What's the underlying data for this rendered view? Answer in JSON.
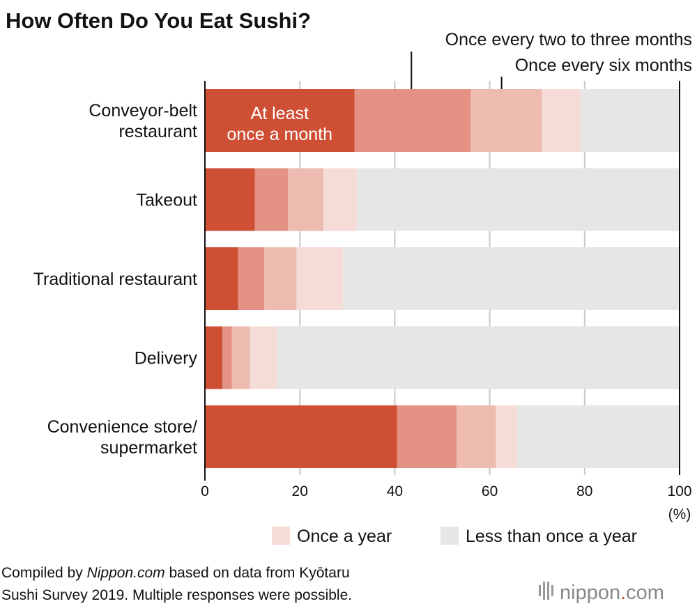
{
  "chart_data": {
    "type": "bar",
    "orientation": "horizontal",
    "stacked": true,
    "title": "How Often Do You Eat Sushi?",
    "unit_label": "(%)",
    "xlim": [
      0,
      100
    ],
    "x_ticks": [
      "0",
      "20",
      "40",
      "60",
      "80",
      "100"
    ],
    "categories": [
      "Conveyor-belt restaurant",
      "Takeout",
      "Traditional restaurant",
      "Delivery",
      "Convenience store/ supermarket"
    ],
    "category_lines": [
      [
        "Conveyor-belt",
        "restaurant"
      ],
      [
        "Takeout"
      ],
      [
        "Traditional restaurant"
      ],
      [
        "Delivery"
      ],
      [
        "Convenience store/",
        "supermarket"
      ]
    ],
    "series": [
      {
        "name": "At least once a month",
        "color": "#cf4f35",
        "values": [
          31.5,
          10.5,
          7.0,
          3.7,
          40.5
        ]
      },
      {
        "name": "Once every two to three months",
        "color": "#e39284",
        "values": [
          24.5,
          7.0,
          5.5,
          2.0,
          12.5
        ]
      },
      {
        "name": "Once every six months",
        "color": "#edbbb0",
        "values": [
          15.0,
          7.5,
          6.8,
          3.8,
          8.3
        ]
      },
      {
        "name": "Once a year",
        "color": "#f6dcd6",
        "values": [
          8.2,
          7.0,
          9.8,
          5.7,
          4.5
        ]
      },
      {
        "name": "Less than once a year",
        "color": "#e6e6e6",
        "values": [
          20.8,
          68.0,
          70.9,
          84.8,
          34.2
        ]
      }
    ],
    "inbar_label_lines": [
      "At least",
      "once a month"
    ],
    "callouts": [
      {
        "text": "Once every two to three months",
        "x": 43.5
      },
      {
        "text": "Once every six months",
        "x": 62.5
      }
    ],
    "legend": [
      {
        "label": "Once a year",
        "color": "#f6dcd6"
      },
      {
        "label": "Less than once a year",
        "color": "#e6e6e6"
      }
    ],
    "source_lines_prefix": "Compiled by ",
    "source_italic": "Nippon.com",
    "source_line1_suffix": " based on data from Kyōtaru",
    "source_line2": "Sushi Survey 2019. Multiple responses were possible.",
    "grid": true
  },
  "brand": {
    "name": "nippon",
    "dot": ".",
    "suffix": "com",
    "dot_color": "#cf4f35"
  }
}
